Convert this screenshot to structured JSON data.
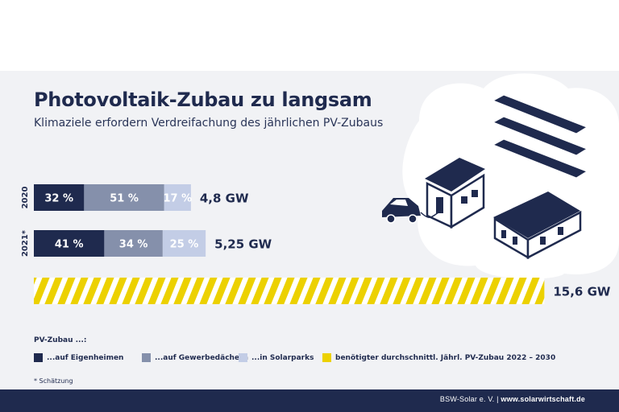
{
  "title": "Photovoltaik-Zubau zu langsam",
  "subtitle": "Klimaziele erfordern Verdreifachung des jährlichen PV-Zubaus",
  "legend_title": "PV-Zubau ...:",
  "footnote": "* Schätzung",
  "footer": {
    "left": "BSW-Solar e. V. |",
    "right": "www.solarwirtschaft.de"
  },
  "colors": {
    "eigenheime": "#1f2a4e",
    "gewerbe": "#8590ab",
    "solarparks": "#c3cde6",
    "target": "#ecd100",
    "text_dark": "#1f2a4e"
  },
  "chart_data": {
    "type": "bar",
    "orientation": "horizontal",
    "title": "Photovoltaik-Zubau zu langsam",
    "subtitle": "Klimaziele erfordern Verdreifachung des jährlichen PV-Zubaus",
    "series": [
      {
        "name": "...auf Eigenheimen",
        "color": "#1f2a4e"
      },
      {
        "name": "...auf Gewerbedächern",
        "color": "#8590ab"
      },
      {
        "name": "...in Solarparks",
        "color": "#c3cde6"
      },
      {
        "name": "benötigter durchschnittl. Jährl. PV-Zubau 2022 – 2030",
        "color": "#ecd100"
      }
    ],
    "bars": [
      {
        "category": "2020",
        "total_gw": 4.8,
        "total_label": "4,8 GW",
        "shares": [
          32,
          51,
          17
        ],
        "share_labels": [
          "32 %",
          "51 %",
          "17 %"
        ]
      },
      {
        "category": "2021*",
        "total_gw": 5.25,
        "total_label": "5,25 GW",
        "shares": [
          41,
          34,
          25
        ],
        "share_labels": [
          "41 %",
          "34 %",
          "25 %"
        ]
      },
      {
        "category": "",
        "total_gw": 15.6,
        "total_label": "15,6 GW",
        "shares": [
          100
        ],
        "series_index": 3,
        "hatched": true
      }
    ]
  },
  "legend_items": [
    {
      "label": "...auf Eigenheimen",
      "color": "#1f2a4e"
    },
    {
      "label": "...auf Gewerbedächern",
      "color": "#8590ab"
    },
    {
      "label": "...in Solarparks",
      "color": "#c3cde6"
    },
    {
      "label": "benötigter durchschnittl. Jährl. PV-Zubau 2022 – 2030",
      "color": "#ecd100"
    }
  ]
}
